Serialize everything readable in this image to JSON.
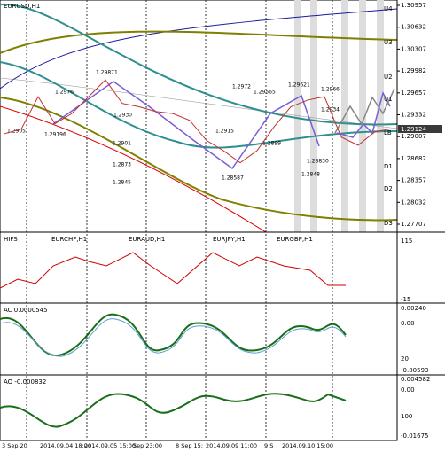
{
  "symbol": "EURUSD,H1",
  "price_axis": [
    "1.30957",
    "1.30632",
    "1.30307",
    "1.29982",
    "1.29657",
    "1.29332",
    "1.29007",
    "1.28682",
    "1.28357",
    "1.28032",
    "1.27707"
  ],
  "current_price": "1.29124",
  "levels": [
    "U4",
    "U3",
    "U2",
    "U1",
    "LB",
    "D1",
    "D2",
    "D3"
  ],
  "annotations": [
    "1.29871",
    "1.2976",
    "1.2930",
    "1.2905",
    "1.29196",
    "1.2901",
    "1.2873",
    "1.2845",
    "1.2972",
    "1.29565",
    "1.29621",
    "1.2966",
    "1.2915",
    "1.2899",
    "1.28587",
    "1.2934",
    "1.28830",
    "1.2848"
  ],
  "closes": [
    1.2905,
    1.2912,
    1.296,
    1.292,
    1.2935,
    1.296,
    1.2985,
    1.295,
    1.2945,
    1.2938,
    1.2935,
    1.2925,
    1.2895,
    1.288,
    1.2862,
    1.288,
    1.2915,
    1.2945,
    1.2955,
    1.296,
    1.29,
    1.2888,
    1.2908,
    1.29124
  ],
  "hifs": {
    "title": "HIFS",
    "pairs": [
      "EURCHF,H1",
      "EURAUD,H1",
      "EURJPY,H1",
      "EURGBP,H1"
    ],
    "axis": [
      "115",
      "-15"
    ]
  },
  "ac": {
    "title": "AC 0.0000545",
    "axis": [
      "0.00240",
      "0.00",
      "20",
      "-0.00593"
    ]
  },
  "ao": {
    "title": "AO -0.000832",
    "axis": [
      "0.004582",
      "0.00",
      "100",
      "-0.01675"
    ]
  },
  "time_axis": [
    "3 Sep 20",
    "2014.09.04 18:00",
    "2014.09.05 15:00",
    "Sep 23:00",
    "8 Sep 15:",
    "2014.09.09 11:00",
    "9 S",
    "2014.09.10 15:00"
  ]
}
